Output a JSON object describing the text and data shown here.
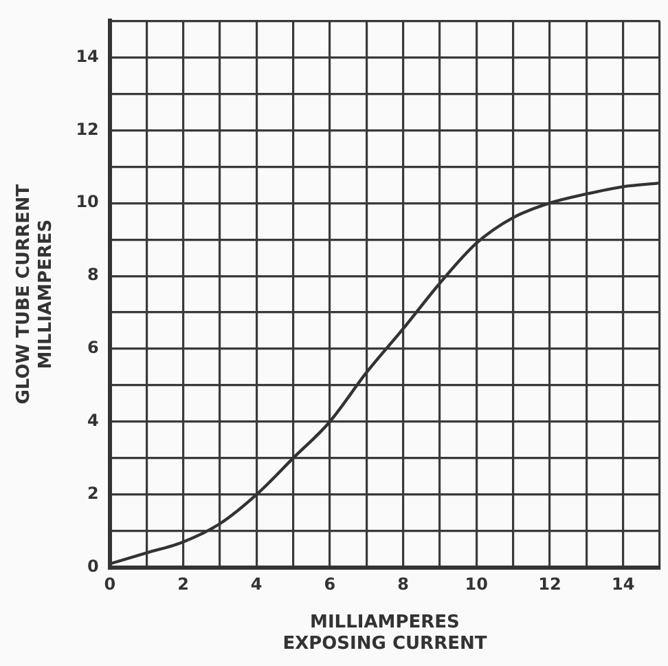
{
  "chart_data": {
    "type": "line",
    "xlabel": "MILLIAMPERES\nEXPOSING CURRENT",
    "ylabel": "GLOW TUBE CURRENT\nMILLIAMPERES",
    "x": [
      0,
      1,
      2,
      3,
      4,
      5,
      6,
      7,
      8,
      9,
      10,
      11,
      12,
      13,
      14,
      15
    ],
    "series": [
      {
        "color": "#333333",
        "values": [
          0.1,
          0.4,
          0.7,
          1.2,
          2.0,
          3.0,
          4.0,
          5.35,
          6.55,
          7.8,
          8.9,
          9.6,
          10.0,
          10.25,
          10.45,
          10.55
        ]
      }
    ],
    "xlim": [
      0,
      15
    ],
    "ylim": [
      0,
      15
    ],
    "xticks": [
      0,
      {
        "value": 1,
        "label": null
      },
      2,
      {
        "value": 3,
        "label": null
      },
      4,
      {
        "value": 5,
        "label": null
      },
      6,
      {
        "value": 7,
        "label": null
      },
      8,
      {
        "value": 9,
        "label": null
      },
      10,
      {
        "value": 11,
        "label": null
      },
      12,
      {
        "value": 13,
        "label": null
      },
      14,
      {
        "value": 15,
        "label": null
      }
    ],
    "yticks": [
      0,
      {
        "value": 1,
        "label": null
      },
      2,
      {
        "value": 3,
        "label": null
      },
      4,
      {
        "value": 5,
        "label": null
      },
      6,
      {
        "value": 7,
        "label": null
      },
      8,
      {
        "value": 9,
        "label": null
      },
      10,
      {
        "value": 11,
        "label": null
      },
      12,
      {
        "value": 13,
        "label": null
      },
      14,
      {
        "value": 15,
        "label": null
      }
    ],
    "grid": true,
    "legend": false,
    "marker": "none",
    "line_style": "solid"
  }
}
